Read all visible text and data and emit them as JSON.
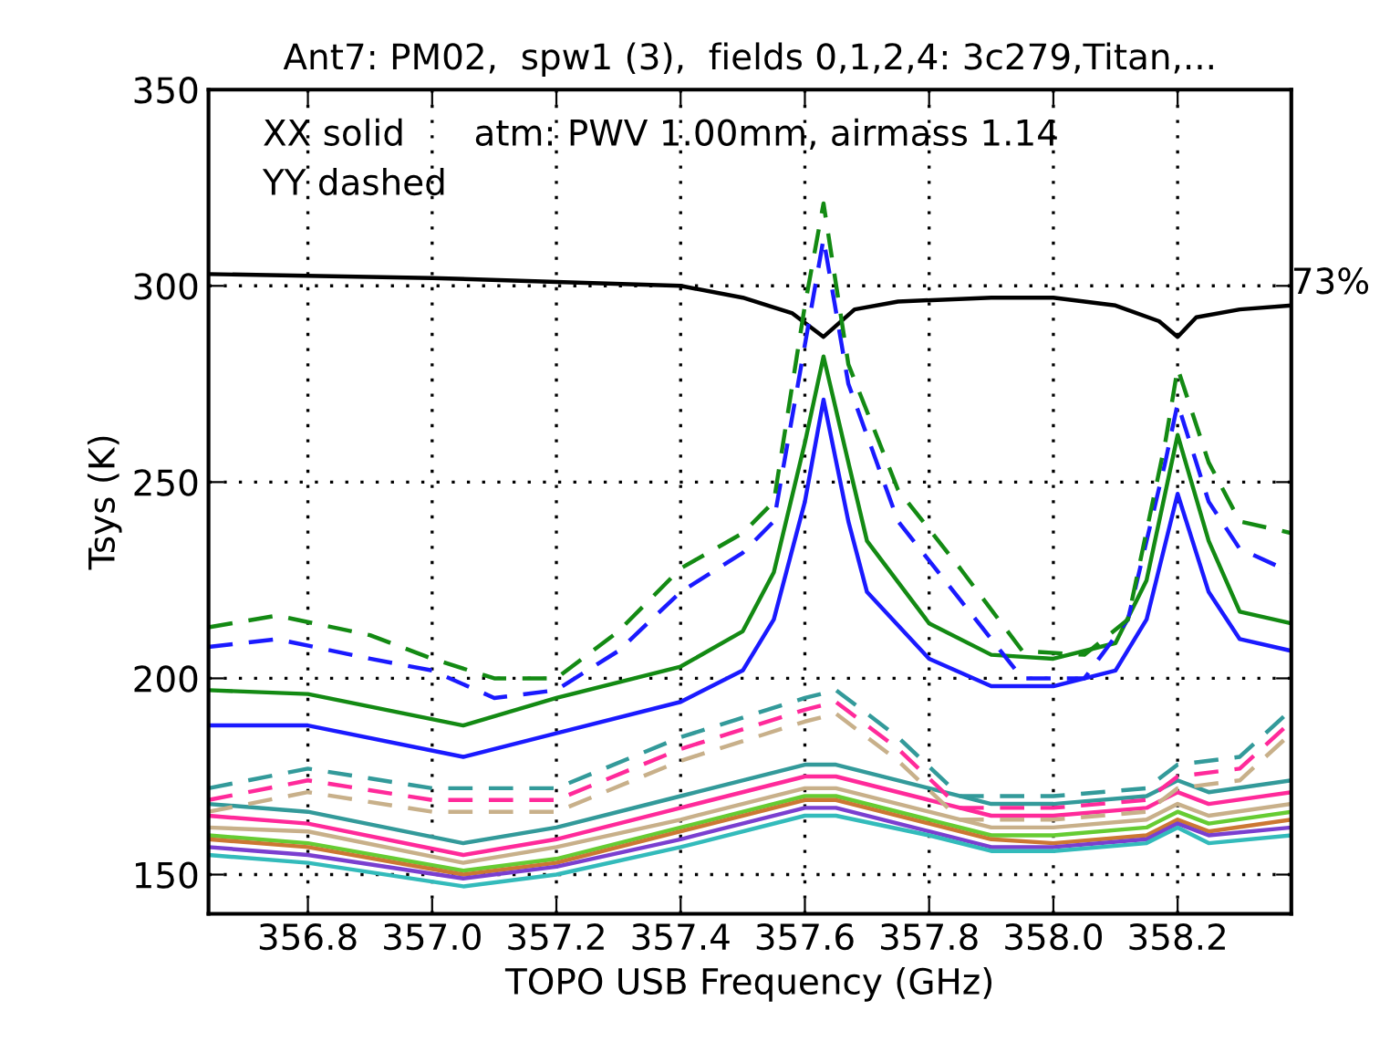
{
  "chart_data": {
    "type": "line",
    "title": "Ant7: PM02,  spw1 (3),  fields 0,1,2,4: 3c279,Titan,...",
    "xlabel": "TOPO USB Frequency (GHz)",
    "ylabel": "Tsys (K)",
    "xlim": [
      356.64,
      358.383
    ],
    "ylim": [
      140,
      350
    ],
    "xticks": [
      {
        "value": 356.8,
        "label": "356.8"
      },
      {
        "value": 357.0,
        "label": "357.0"
      },
      {
        "value": 357.2,
        "label": "357.2"
      },
      {
        "value": 357.4,
        "label": "357.4"
      },
      {
        "value": 357.6,
        "label": "357.6"
      },
      {
        "value": 357.8,
        "label": "357.8"
      },
      {
        "value": 358.0,
        "label": "358.0"
      },
      {
        "value": 358.2,
        "label": "358.2"
      }
    ],
    "yticks": [
      150,
      200,
      250,
      300,
      350
    ],
    "grid": true,
    "marker": "none",
    "annotations": [
      "XX solid",
      "YY dashed",
      "atm: PWV 1.00mm, airmass 1.14",
      "73%"
    ],
    "series": [
      {
        "color": "#000000",
        "line_style": "solid",
        "x": [
          356.64,
          357.0,
          357.2,
          357.4,
          357.5,
          357.58,
          357.63,
          357.68,
          357.75,
          357.9,
          358.0,
          358.1,
          358.17,
          358.2,
          358.23,
          358.3,
          358.383
        ],
        "values": [
          303,
          302,
          301,
          300,
          297,
          293,
          287,
          294,
          296,
          297,
          297,
          295,
          291,
          287,
          292,
          294,
          295
        ]
      },
      {
        "color": "#339a9a",
        "line_style": "solid",
        "x": [
          356.64,
          356.8,
          357.05,
          357.2,
          357.4,
          357.6,
          357.65,
          357.8,
          357.9,
          358.0,
          358.15,
          358.2,
          358.25,
          358.383
        ],
        "values": [
          168,
          166,
          158,
          162,
          170,
          178,
          178,
          172,
          168,
          168,
          170,
          174,
          171,
          174
        ]
      },
      {
        "color": "#ff2a9a",
        "line_style": "solid",
        "x": [
          356.64,
          356.8,
          357.05,
          357.2,
          357.4,
          357.6,
          357.65,
          357.8,
          357.9,
          358.0,
          358.15,
          358.2,
          358.25,
          358.383
        ],
        "values": [
          165,
          163,
          155,
          159,
          167,
          175,
          175,
          169,
          165,
          165,
          167,
          171,
          168,
          171
        ]
      },
      {
        "color": "#c8b08a",
        "line_style": "solid",
        "x": [
          356.64,
          356.8,
          357.05,
          357.2,
          357.4,
          357.6,
          357.65,
          357.8,
          357.9,
          358.0,
          358.15,
          358.2,
          358.25,
          358.383
        ],
        "values": [
          162,
          161,
          153,
          157,
          164,
          172,
          172,
          166,
          162,
          162,
          164,
          168,
          165,
          168
        ]
      },
      {
        "color": "#66cc33",
        "line_style": "solid",
        "x": [
          356.64,
          356.8,
          357.05,
          357.2,
          357.4,
          357.6,
          357.65,
          357.8,
          357.9,
          358.0,
          358.15,
          358.2,
          358.25,
          358.383
        ],
        "values": [
          160,
          158,
          151,
          154,
          162,
          170,
          170,
          164,
          160,
          160,
          162,
          166,
          163,
          166
        ]
      },
      {
        "color": "#cc7733",
        "line_style": "solid",
        "x": [
          356.64,
          356.8,
          357.05,
          357.2,
          357.4,
          357.6,
          357.65,
          357.8,
          357.9,
          358.0,
          358.15,
          358.2,
          358.25,
          358.383
        ],
        "values": [
          159,
          157,
          150,
          153,
          161,
          169,
          169,
          163,
          159,
          158,
          160,
          164,
          161,
          164
        ]
      },
      {
        "color": "#7a3fd0",
        "line_style": "solid",
        "x": [
          356.64,
          356.8,
          357.05,
          357.2,
          357.4,
          357.6,
          357.65,
          357.8,
          357.9,
          358.0,
          358.15,
          358.2,
          358.25,
          358.383
        ],
        "values": [
          157,
          155,
          149,
          152,
          159,
          167,
          167,
          161,
          157,
          157,
          159,
          163,
          160,
          162
        ]
      },
      {
        "color": "#33bbbb",
        "line_style": "solid",
        "x": [
          356.64,
          356.8,
          357.05,
          357.2,
          357.4,
          357.6,
          357.65,
          357.8,
          357.9,
          358.0,
          358.15,
          358.2,
          358.25,
          358.383
        ],
        "values": [
          155,
          153,
          147,
          150,
          157,
          165,
          165,
          160,
          156,
          156,
          158,
          162,
          158,
          160
        ]
      },
      {
        "color": "#c8b08a",
        "line_style": "dashed",
        "x": [
          356.64,
          356.8,
          357.0,
          357.2,
          357.4,
          357.6,
          357.65,
          357.75,
          357.85,
          358.0,
          358.15,
          358.2,
          358.3,
          358.383
        ],
        "values": [
          166,
          171,
          166,
          166,
          179,
          189,
          191,
          179,
          164,
          164,
          166,
          172,
          174,
          186
        ]
      },
      {
        "color": "#ff2a9a",
        "line_style": "dashed",
        "x": [
          356.64,
          356.8,
          357.0,
          357.2,
          357.4,
          357.6,
          357.65,
          357.75,
          357.85,
          358.0,
          358.15,
          358.2,
          358.3,
          358.383
        ],
        "values": [
          169,
          174,
          169,
          169,
          182,
          192,
          194,
          182,
          167,
          167,
          169,
          175,
          177,
          189
        ]
      },
      {
        "color": "#339a9a",
        "line_style": "dashed",
        "x": [
          356.64,
          356.8,
          357.0,
          357.2,
          357.4,
          357.6,
          357.65,
          357.75,
          357.85,
          358.0,
          358.15,
          358.2,
          358.3,
          358.383
        ],
        "values": [
          172,
          177,
          172,
          172,
          185,
          195,
          197,
          185,
          170,
          170,
          172,
          178,
          180,
          192
        ]
      },
      {
        "color": "#1a1aff",
        "line_style": "solid",
        "x": [
          356.64,
          356.8,
          357.05,
          357.2,
          357.4,
          357.5,
          357.55,
          357.6,
          357.63,
          357.67,
          357.7,
          357.8,
          357.9,
          358.0,
          358.1,
          358.15,
          358.2,
          358.25,
          358.3,
          358.383
        ],
        "values": [
          188,
          188,
          180,
          186,
          194,
          202,
          215,
          245,
          271,
          240,
          222,
          205,
          198,
          198,
          202,
          215,
          247,
          222,
          210,
          207
        ]
      },
      {
        "color": "#138a13",
        "line_style": "solid",
        "x": [
          356.64,
          356.8,
          357.05,
          357.2,
          357.4,
          357.5,
          357.55,
          357.6,
          357.63,
          357.67,
          357.7,
          357.8,
          357.9,
          358.0,
          358.1,
          358.15,
          358.2,
          358.25,
          358.3,
          358.383
        ],
        "values": [
          197,
          196,
          188,
          195,
          203,
          212,
          227,
          260,
          282,
          255,
          235,
          214,
          206,
          205,
          209,
          225,
          262,
          235,
          217,
          214
        ]
      },
      {
        "color": "#1a1aff",
        "line_style": "dashed",
        "x": [
          356.64,
          356.75,
          356.9,
          357.0,
          357.1,
          357.2,
          357.3,
          357.4,
          357.5,
          357.55,
          357.6,
          357.63,
          357.67,
          357.75,
          357.85,
          357.95,
          358.05,
          358.12,
          358.18,
          358.2,
          358.25,
          358.3,
          358.383
        ],
        "values": [
          208,
          210,
          205,
          202,
          195,
          197,
          207,
          222,
          232,
          240,
          285,
          312,
          275,
          240,
          220,
          200,
          200,
          215,
          255,
          270,
          245,
          233,
          227
        ]
      },
      {
        "color": "#138a13",
        "line_style": "dashed",
        "x": [
          356.64,
          356.75,
          356.9,
          357.0,
          357.1,
          357.2,
          357.3,
          357.4,
          357.5,
          357.55,
          357.6,
          357.63,
          357.67,
          357.75,
          357.85,
          357.95,
          358.05,
          358.12,
          358.18,
          358.2,
          358.25,
          358.3,
          358.383
        ],
        "values": [
          213,
          216,
          211,
          205,
          200,
          200,
          212,
          228,
          237,
          245,
          295,
          321,
          280,
          248,
          228,
          207,
          206,
          215,
          260,
          279,
          255,
          240,
          237
        ]
      }
    ]
  }
}
